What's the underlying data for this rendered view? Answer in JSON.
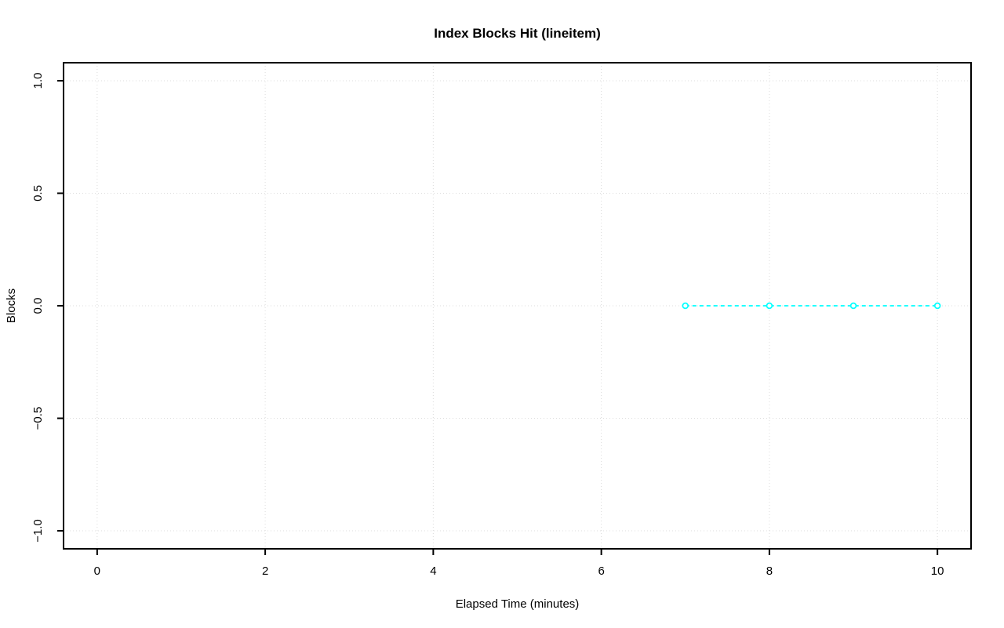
{
  "page": {
    "background_color": "#ffffff"
  },
  "chart_data": {
    "type": "line",
    "title": "Index Blocks Hit (lineitem)",
    "xlabel": "Elapsed Time (minutes)",
    "ylabel": "Blocks",
    "series": [
      {
        "name": "Index Blocks Hit",
        "x": [
          7,
          8,
          9,
          10
        ],
        "y": [
          0,
          0,
          0,
          0
        ],
        "marker": "open-circle",
        "line_style": "dashed"
      }
    ],
    "xlim": [
      0,
      10
    ],
    "ylim": [
      -1,
      1
    ],
    "xticks": [
      0,
      2,
      4,
      6,
      8,
      10
    ],
    "xtick_labels": [
      "0",
      "2",
      "4",
      "6",
      "8",
      "10"
    ],
    "yticks": [
      -1,
      -0.5,
      0,
      0.5,
      1
    ],
    "ytick_labels": [
      "−1.0",
      "−0.5",
      "0.0",
      "0.5",
      "1.0"
    ],
    "grid": "dotted",
    "legend": "none",
    "colors": {
      "series": "#00ffff",
      "grid": "#dcdcdc",
      "axis": "#000000",
      "text": "#000000",
      "background": "#ffffff"
    }
  }
}
